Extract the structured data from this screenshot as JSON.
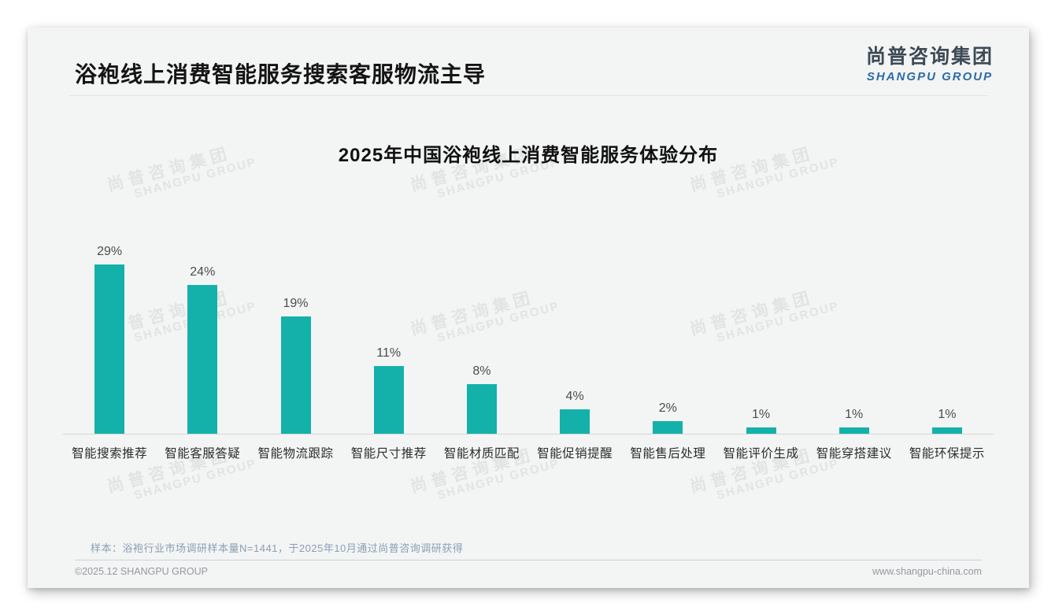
{
  "page": {
    "title": "浴袍线上消费智能服务搜索客服物流主导",
    "logo": {
      "cn": "尚普咨询集团",
      "en": "SHANGPU GROUP"
    },
    "note": "样本：浴袍行业市场调研样本量N=1441，于2025年10月通过尚普咨询调研获得",
    "copyright": "©2025.12 SHANGPU GROUP",
    "website": "www.shangpu-china.com",
    "watermark": {
      "cn": "尚普咨询集团",
      "en": "SHANGPU GROUP"
    }
  },
  "colors": {
    "bar": "#14b1ab",
    "logo_dark": "#3d4a55",
    "logo_blue": "#2b6ba8",
    "card_bg": "#f3f4f4"
  },
  "chart_data": {
    "type": "bar",
    "title": "2025年中国浴袍线上消费智能服务体验分布",
    "categories": [
      "智能搜索推荐",
      "智能客服答疑",
      "智能物流跟踪",
      "智能尺寸推荐",
      "智能材质匹配",
      "智能促销提醒",
      "智能售后处理",
      "智能评价生成",
      "智能穿搭建议",
      "智能环保提示"
    ],
    "values": [
      29,
      24,
      19,
      11,
      8,
      4,
      2,
      1,
      1,
      1
    ],
    "unit": "%",
    "xlabel": "",
    "ylabel": "",
    "ylim": [
      0,
      30
    ],
    "grid": false,
    "legend": "none",
    "value_labels": true
  }
}
